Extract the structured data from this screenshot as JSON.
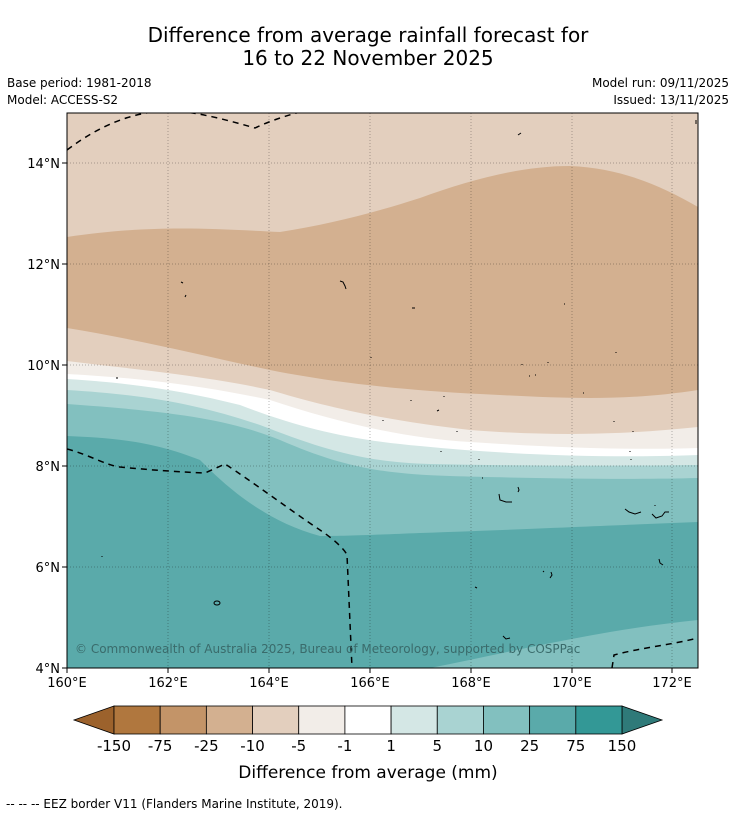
{
  "title_line1": "Difference from average rainfall forecast for",
  "title_line2": "16 to 22 November 2025",
  "base_period": "Base period: 1981-2018",
  "model": "Model: ACCESS-S2",
  "model_run": "Model run: 09/11/2025",
  "issued": "Issued: 13/11/2025",
  "copyright": "© Commonwealth of Australia 2025, Bureau of Meteorology, supported by COSPPac",
  "lat_labels": [
    "4°N",
    "6°N",
    "8°N",
    "10°N",
    "12°N",
    "14°N"
  ],
  "lon_labels": [
    "160°E",
    "162°E",
    "164°E",
    "166°E",
    "168°E",
    "170°E",
    "172°E"
  ],
  "colorbar": {
    "colors": [
      "#9c622c",
      "#b0773e",
      "#c39468",
      "#d3b090",
      "#e3cfbe",
      "#f2ede8",
      "#ffffff",
      "#d4e7e5",
      "#a9d3d2",
      "#82c0bf",
      "#5aaaaa",
      "#339896",
      "#2f7a79"
    ],
    "tick_labels": [
      "-150",
      "-75",
      "-25",
      "-10",
      "-5",
      "-1",
      "1",
      "5",
      "10",
      "25",
      "75",
      "150"
    ],
    "label": "Difference from average (mm)"
  },
  "legend_text": "--  --  -- EEZ border V11 (Flanders Marine Institute, 2019)."
}
